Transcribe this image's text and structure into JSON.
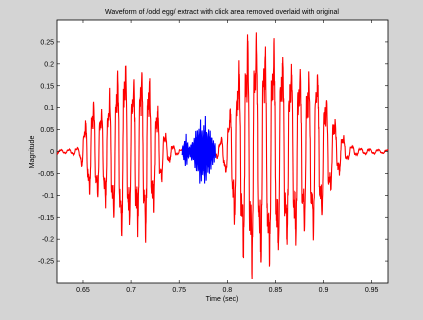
{
  "chart_data": {
    "type": "line",
    "title": "Waveform of /odd egg/ extract with click area removed overlaid with original",
    "xlabel": "Time (sec)",
    "ylabel": "Magnitude",
    "xlim": [
      0.623,
      0.967
    ],
    "ylim": [
      -0.3,
      0.3
    ],
    "x_ticks": [
      0.65,
      0.7,
      0.75,
      0.8,
      0.85,
      0.9,
      0.95
    ],
    "x_tick_labels": [
      "0.65",
      "0.7",
      "0.75",
      "0.8",
      "0.85",
      "0.9",
      "0.95"
    ],
    "y_ticks": [
      0.25,
      0.2,
      0.15,
      0.1,
      0.05,
      0,
      -0.05,
      -0.1,
      -0.15,
      -0.2,
      -0.25
    ],
    "y_tick_labels": [
      "0.25",
      "0.2",
      "0.15",
      "0.1",
      "0.05",
      "0",
      "-0.05",
      "-0.1",
      "-0.15",
      "-0.2",
      "-0.25"
    ],
    "grid": false,
    "series": [
      {
        "color": "#0000ff",
        "segments": [
          {
            "x_start": 0.753,
            "x_end": 0.788,
            "amp": [
              0.01,
              0.04,
              0.01,
              0.03,
              0.06,
              0.07,
              0.08,
              0.06,
              0.04,
              0.015
            ],
            "freq_hz": 600
          }
        ]
      },
      {
        "color": "#ff0000",
        "segments": [
          {
            "x_start": 0.623,
            "x_end": 0.753,
            "amp": [
              0.005,
              0.004,
              0.006,
              0.01,
              0.08,
              0.12,
              0.1,
              0.13,
              0.17,
              0.22,
              0.16,
              0.18,
              0.2,
              0.14,
              0.08,
              0.03,
              0.01,
              0.004
            ],
            "freq_hz": 120
          },
          {
            "x_start": 0.788,
            "x_end": 0.967,
            "amp": [
              0.01,
              0.05,
              0.18,
              0.26,
              0.27,
              0.25,
              0.24,
              0.21,
              0.2,
              0.18,
              0.19,
              0.12,
              0.06,
              0.02,
              0.008,
              0.006,
              0.005,
              0.004
            ],
            "freq_hz": 110
          }
        ]
      }
    ]
  }
}
